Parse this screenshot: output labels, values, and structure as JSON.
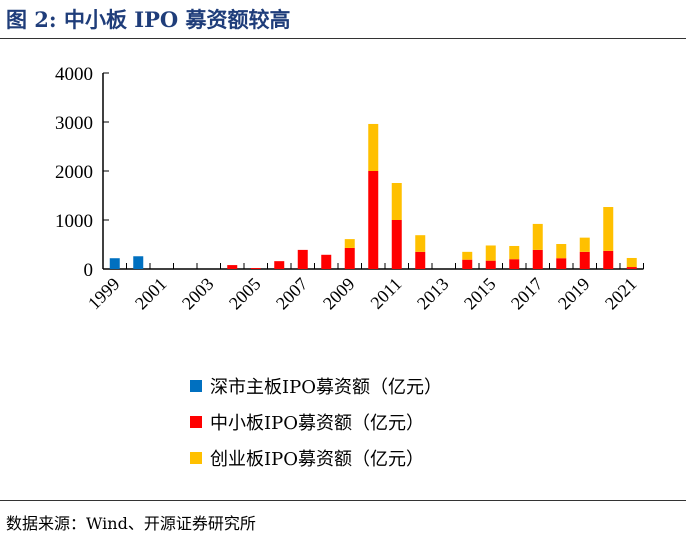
{
  "title": "图 2:  中小板 IPO 募资额较高",
  "source": "数据来源：Wind、开源证券研究所",
  "chart_data": {
    "type": "bar",
    "stacked": true,
    "categories": [
      "1999",
      "2000",
      "2001",
      "2002",
      "2003",
      "2004",
      "2005",
      "2006",
      "2007",
      "2008",
      "2009",
      "2010",
      "2011",
      "2012",
      "2013",
      "2014",
      "2015",
      "2016",
      "2017",
      "2018",
      "2019",
      "2020",
      "2021"
    ],
    "x_tick_labels": [
      "1999",
      "2001",
      "2003",
      "2005",
      "2007",
      "2009",
      "2011",
      "2013",
      "2015",
      "2017",
      "2019",
      "2021"
    ],
    "ylim": [
      0,
      4000
    ],
    "y_ticks": [
      0,
      1000,
      2000,
      3000,
      4000
    ],
    "legend_placement": "bottom",
    "series": [
      {
        "name": "深市主板IPO募资额（亿元）",
        "color": "#0070c0",
        "values": [
          220,
          260,
          0,
          0,
          0,
          0,
          0,
          0,
          0,
          0,
          0,
          0,
          0,
          0,
          0,
          0,
          0,
          0,
          0,
          0,
          0,
          0,
          0
        ]
      },
      {
        "name": "中小板IPO募资额（亿元）",
        "color": "#ff0000",
        "values": [
          0,
          0,
          0,
          0,
          0,
          80,
          20,
          160,
          390,
          290,
          430,
          2000,
          1000,
          350,
          0,
          190,
          170,
          200,
          390,
          220,
          350,
          370,
          40
        ]
      },
      {
        "name": "创业板IPO募资额（亿元）",
        "color": "#ffc000",
        "values": [
          0,
          0,
          0,
          0,
          0,
          0,
          0,
          0,
          0,
          0,
          180,
          960,
          755,
          340,
          0,
          160,
          310,
          270,
          530,
          290,
          290,
          895,
          185
        ]
      }
    ]
  }
}
